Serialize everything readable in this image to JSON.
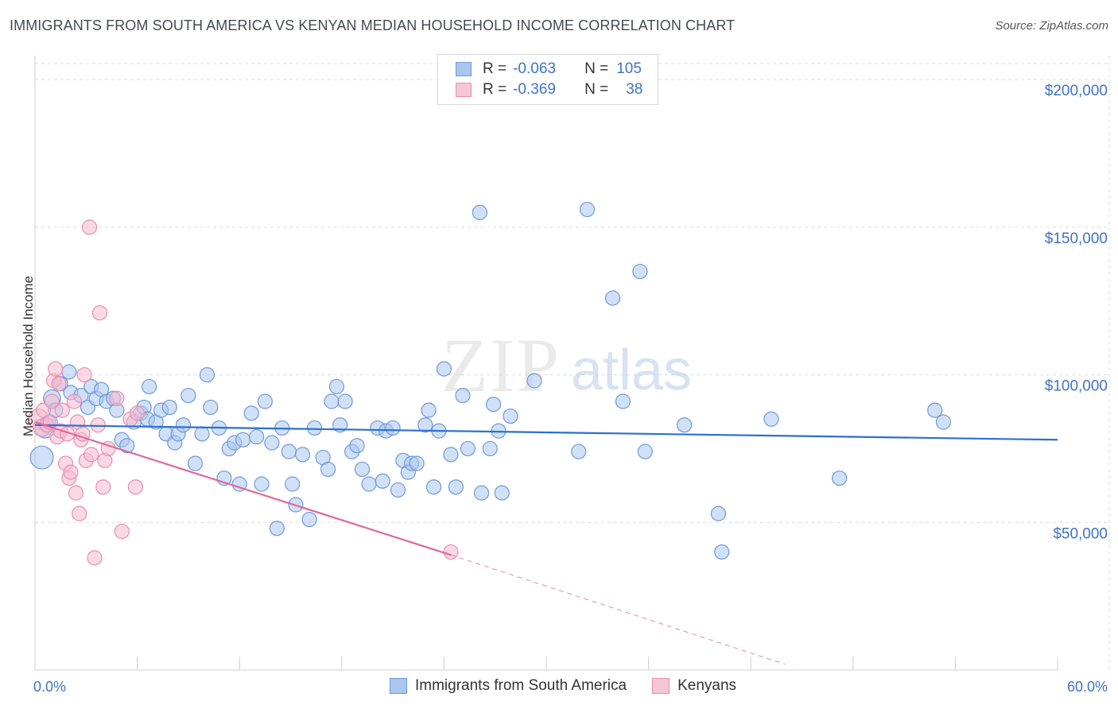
{
  "title": "IMMIGRANTS FROM SOUTH AMERICA VS KENYAN MEDIAN HOUSEHOLD INCOME CORRELATION CHART",
  "source": "Source: ZipAtlas.com",
  "watermark": {
    "zip": "ZIP",
    "atlas": "atlas"
  },
  "legend": {
    "rows": [
      {
        "r_label": "R =",
        "r_value": "-0.063",
        "n_label": "N =",
        "n_value": "105"
      },
      {
        "r_label": "R =",
        "r_value": "-0.369",
        "n_label": "N =",
        "n_value": "38"
      }
    ]
  },
  "bottom_legend": {
    "series1": "Immigrants from South America",
    "series2": "Kenyans"
  },
  "colors": {
    "blue_fill": "#a9c6ee",
    "blue_stroke": "#6f9ad8",
    "blue_line": "#2b6fd1",
    "pink_fill": "#f5b9cf",
    "pink_stroke": "#e88fb0",
    "pink_line": "#e0689a",
    "grid": "#dcdcdc",
    "tick_label": "#3f73c6"
  },
  "chart_data": {
    "type": "scatter",
    "title": "IMMIGRANTS FROM SOUTH AMERICA VS KENYAN MEDIAN HOUSEHOLD INCOME CORRELATION CHART",
    "xlabel": "",
    "ylabel": "Median Household Income",
    "xlim": [
      0,
      60
    ],
    "ylim": [
      0,
      210000
    ],
    "x_tick_labels": [
      "0.0%",
      "60.0%"
    ],
    "y_ticks": [
      50000,
      100000,
      150000,
      200000
    ],
    "y_tick_labels": [
      "$50,000",
      "$100,000",
      "$150,000",
      "$200,000"
    ],
    "series": [
      {
        "name": "Immigrants from South America",
        "r": -0.063,
        "n": 105,
        "trend": {
          "x0": 0,
          "y0": 83000,
          "x1": 60,
          "y1": 78000
        },
        "points": [
          [
            0.4,
            72000,
            1.6
          ],
          [
            0.6,
            82000,
            1.4
          ],
          [
            0.8,
            84000,
            1
          ],
          [
            1.0,
            92000,
            1.2
          ],
          [
            1.2,
            88000,
            1
          ],
          [
            1.5,
            97000,
            1
          ],
          [
            2.0,
            101000,
            1
          ],
          [
            2.1,
            94000,
            1
          ],
          [
            2.7,
            93000,
            1
          ],
          [
            3.1,
            89000,
            1
          ],
          [
            3.3,
            96000,
            1
          ],
          [
            3.6,
            92000,
            1
          ],
          [
            3.9,
            95000,
            1
          ],
          [
            4.2,
            91000,
            1
          ],
          [
            4.6,
            92000,
            1
          ],
          [
            4.8,
            88000,
            1
          ],
          [
            5.1,
            78000,
            1
          ],
          [
            5.4,
            76000,
            1
          ],
          [
            5.8,
            84000,
            1
          ],
          [
            6.2,
            87000,
            1
          ],
          [
            6.4,
            89000,
            1
          ],
          [
            6.6,
            85000,
            1
          ],
          [
            6.7,
            96000,
            1
          ],
          [
            7.1,
            84000,
            1
          ],
          [
            7.4,
            88000,
            1
          ],
          [
            7.7,
            80000,
            1
          ],
          [
            7.9,
            89000,
            1
          ],
          [
            8.2,
            77000,
            1
          ],
          [
            8.4,
            80000,
            1
          ],
          [
            8.7,
            83000,
            1
          ],
          [
            9.0,
            93000,
            1
          ],
          [
            9.4,
            70000,
            1
          ],
          [
            9.8,
            80000,
            1
          ],
          [
            10.1,
            100000,
            1
          ],
          [
            10.3,
            89000,
            1
          ],
          [
            10.8,
            82000,
            1
          ],
          [
            11.1,
            65000,
            1
          ],
          [
            11.4,
            75000,
            1
          ],
          [
            11.7,
            77000,
            1
          ],
          [
            12.0,
            63000,
            1
          ],
          [
            12.2,
            78000,
            1
          ],
          [
            12.7,
            87000,
            1
          ],
          [
            13.0,
            79000,
            1
          ],
          [
            13.3,
            63000,
            1
          ],
          [
            13.5,
            91000,
            1
          ],
          [
            13.9,
            77000,
            1
          ],
          [
            14.2,
            48000,
            1
          ],
          [
            14.5,
            82000,
            1
          ],
          [
            14.9,
            74000,
            1
          ],
          [
            15.1,
            63000,
            1
          ],
          [
            15.3,
            56000,
            1
          ],
          [
            15.7,
            73000,
            1
          ],
          [
            16.1,
            51000,
            1
          ],
          [
            16.4,
            82000,
            1
          ],
          [
            16.9,
            72000,
            1
          ],
          [
            17.2,
            68000,
            1
          ],
          [
            17.4,
            91000,
            1
          ],
          [
            17.7,
            96000,
            1
          ],
          [
            17.9,
            83000,
            1
          ],
          [
            18.2,
            91000,
            1
          ],
          [
            18.6,
            74000,
            1
          ],
          [
            18.9,
            76000,
            1
          ],
          [
            19.2,
            68000,
            1
          ],
          [
            19.6,
            63000,
            1
          ],
          [
            20.1,
            82000,
            1
          ],
          [
            20.4,
            64000,
            1
          ],
          [
            20.6,
            81000,
            1
          ],
          [
            21.0,
            82000,
            1
          ],
          [
            21.3,
            61000,
            1
          ],
          [
            21.6,
            71000,
            1
          ],
          [
            21.9,
            67000,
            1
          ],
          [
            22.1,
            70000,
            1
          ],
          [
            22.4,
            70000,
            1
          ],
          [
            22.9,
            83000,
            1
          ],
          [
            23.1,
            88000,
            1
          ],
          [
            23.4,
            62000,
            1
          ],
          [
            23.7,
            81000,
            1
          ],
          [
            24.0,
            102000,
            1
          ],
          [
            24.4,
            73000,
            1
          ],
          [
            24.7,
            62000,
            1
          ],
          [
            25.1,
            93000,
            1
          ],
          [
            25.4,
            75000,
            1
          ],
          [
            26.1,
            155000,
            1
          ],
          [
            26.2,
            60000,
            1
          ],
          [
            26.7,
            75000,
            1
          ],
          [
            26.9,
            90000,
            1
          ],
          [
            27.2,
            81000,
            1
          ],
          [
            27.4,
            60000,
            1
          ],
          [
            27.9,
            86000,
            1
          ],
          [
            29.3,
            98000,
            1
          ],
          [
            31.9,
            74000,
            1
          ],
          [
            32.4,
            156000,
            1
          ],
          [
            33.9,
            126000,
            1
          ],
          [
            34.5,
            91000,
            1
          ],
          [
            35.5,
            135000,
            1
          ],
          [
            35.8,
            74000,
            1
          ],
          [
            38.1,
            83000,
            1
          ],
          [
            40.1,
            53000,
            1
          ],
          [
            40.3,
            40000,
            1
          ],
          [
            43.2,
            85000,
            1
          ],
          [
            47.2,
            65000,
            1
          ],
          [
            52.8,
            88000,
            1
          ],
          [
            53.3,
            84000,
            1
          ]
        ]
      },
      {
        "name": "Kenyans",
        "r": -0.369,
        "n": 38,
        "trend": {
          "x0": 0,
          "y0": 84000,
          "x1": 24.4,
          "y1": 39000
        },
        "trend_dashed": {
          "x0": 24.4,
          "y0": 39000,
          "x1": 44,
          "y1": 2000
        },
        "points": [
          [
            0.2,
            85000,
            1.4
          ],
          [
            0.4,
            82000,
            1.2
          ],
          [
            0.5,
            88000,
            1
          ],
          [
            0.7,
            83000,
            1
          ],
          [
            0.9,
            84000,
            1
          ],
          [
            1.0,
            91000,
            1
          ],
          [
            1.1,
            98000,
            1
          ],
          [
            1.2,
            102000,
            1
          ],
          [
            1.3,
            79000,
            1
          ],
          [
            1.4,
            97000,
            1
          ],
          [
            1.5,
            81000,
            1
          ],
          [
            1.6,
            88000,
            1
          ],
          [
            1.8,
            70000,
            1
          ],
          [
            1.9,
            80000,
            1
          ],
          [
            2.0,
            65000,
            1
          ],
          [
            2.1,
            67000,
            1
          ],
          [
            2.3,
            91000,
            1
          ],
          [
            2.4,
            60000,
            1
          ],
          [
            2.5,
            84000,
            1
          ],
          [
            2.6,
            53000,
            1
          ],
          [
            2.7,
            78000,
            1
          ],
          [
            2.8,
            80000,
            1
          ],
          [
            2.9,
            100000,
            1
          ],
          [
            3.0,
            71000,
            1
          ],
          [
            3.2,
            150000,
            1
          ],
          [
            3.3,
            73000,
            1
          ],
          [
            3.5,
            38000,
            1
          ],
          [
            3.7,
            83000,
            1
          ],
          [
            3.8,
            121000,
            1
          ],
          [
            4.0,
            62000,
            1
          ],
          [
            4.1,
            71000,
            1
          ],
          [
            4.3,
            75000,
            1
          ],
          [
            4.8,
            92000,
            1
          ],
          [
            5.1,
            47000,
            1
          ],
          [
            5.6,
            85000,
            1
          ],
          [
            5.9,
            62000,
            1
          ],
          [
            6.0,
            87000,
            1
          ],
          [
            24.4,
            40000,
            1
          ]
        ]
      }
    ]
  }
}
